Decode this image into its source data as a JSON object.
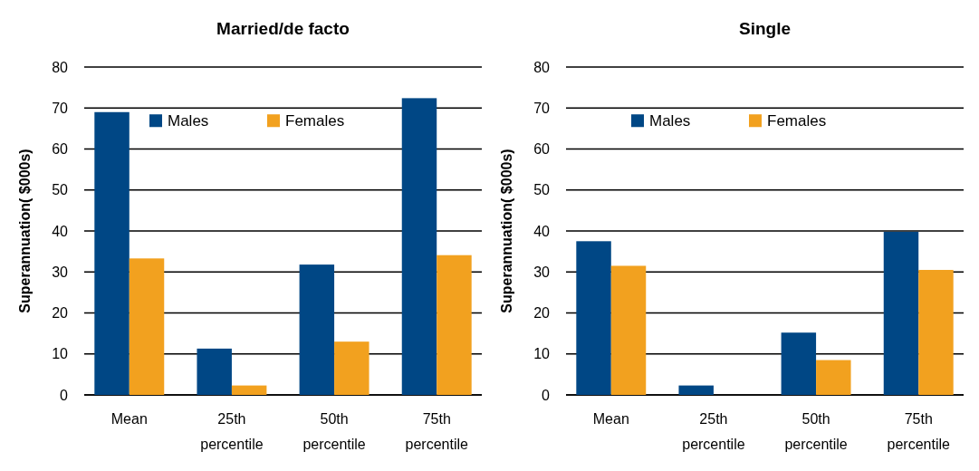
{
  "chart_data": [
    {
      "type": "bar",
      "title": "Married/de facto",
      "ylabel": "Superannuation( $000s)",
      "categories": [
        "Mean",
        "25th percentile",
        "50th percentile",
        "75th percentile"
      ],
      "series": [
        {
          "name": "Males",
          "color": "#004785",
          "values": [
            69,
            11.3,
            31.8,
            72.4
          ]
        },
        {
          "name": "Females",
          "color": "#f2a11f",
          "values": [
            33.3,
            2.3,
            13,
            34.1
          ]
        }
      ],
      "ylim": [
        0,
        80
      ],
      "yticks": [
        0,
        10,
        20,
        30,
        40,
        50,
        60,
        70,
        80
      ],
      "grid": "y",
      "legend": "top"
    },
    {
      "type": "bar",
      "title": "Single",
      "ylabel": "Superannuation( $000s)",
      "categories": [
        "Mean",
        "25th percentile",
        "50th percentile",
        "75th percentile"
      ],
      "series": [
        {
          "name": "Males",
          "color": "#004785",
          "values": [
            37.5,
            2.3,
            15.2,
            39.8
          ]
        },
        {
          "name": "Females",
          "color": "#f2a11f",
          "values": [
            31.5,
            0,
            8.5,
            30.5
          ]
        }
      ],
      "ylim": [
        0,
        80
      ],
      "yticks": [
        0,
        10,
        20,
        30,
        40,
        50,
        60,
        70,
        80
      ],
      "grid": "y",
      "legend": "top"
    }
  ]
}
